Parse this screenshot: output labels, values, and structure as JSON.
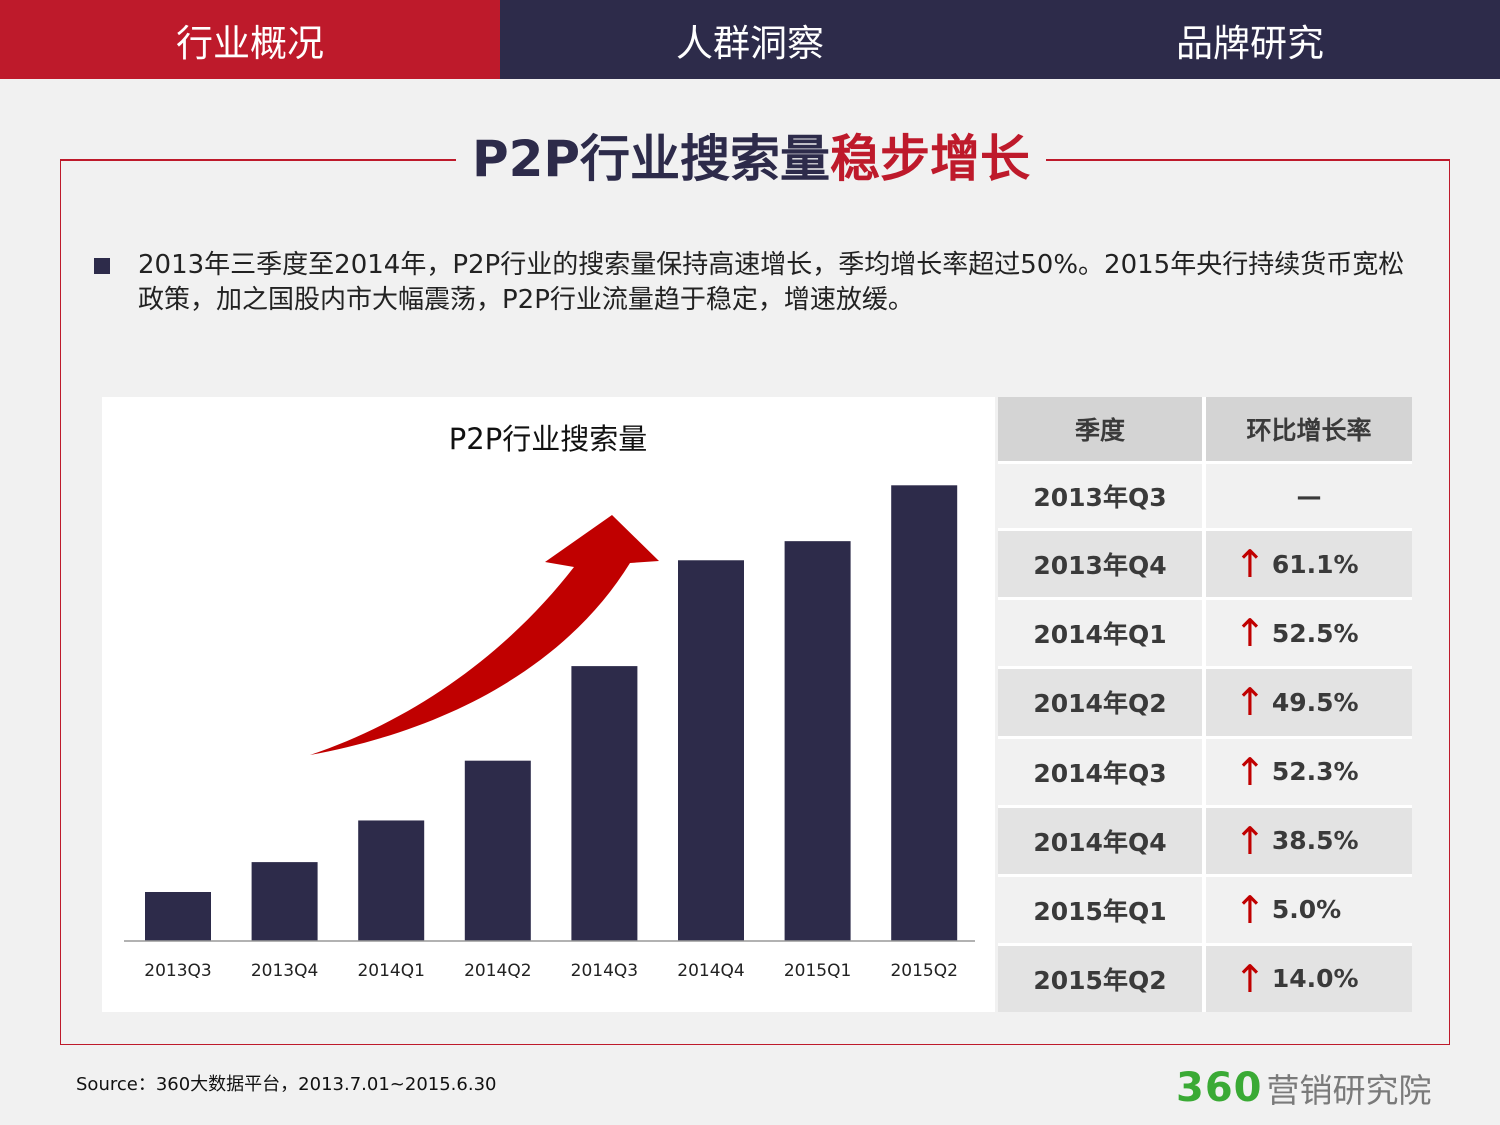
{
  "tabs": [
    {
      "label": "行业概况",
      "active": true
    },
    {
      "label": "人群洞察",
      "active": false
    },
    {
      "label": "品牌研究",
      "active": false
    }
  ],
  "page_title": {
    "main": "P2P行业搜索量",
    "highlight": "稳步增长"
  },
  "bullet": "2013年三季度至2014年，P2P行业的搜索量保持高速增长，季均增长率超过50%。2015年央行持续货币宽松政策，加之国股内市大幅震荡，P2P行业流量趋于稳定，增速放缓。",
  "table": {
    "headers": [
      "季度",
      "环比增长率"
    ],
    "rows": [
      {
        "quarter": "2013年Q3",
        "rate": "—",
        "up": false
      },
      {
        "quarter": "2013年Q4",
        "rate": "61.1%",
        "up": true
      },
      {
        "quarter": "2014年Q1",
        "rate": "52.5%",
        "up": true
      },
      {
        "quarter": "2014年Q2",
        "rate": "49.5%",
        "up": true
      },
      {
        "quarter": "2014年Q3",
        "rate": "52.3%",
        "up": true
      },
      {
        "quarter": "2014年Q4",
        "rate": "38.5%",
        "up": true
      },
      {
        "quarter": "2015年Q1",
        "rate": "5.0%",
        "up": true
      },
      {
        "quarter": "2015年Q2",
        "rate": "14.0%",
        "up": true
      }
    ]
  },
  "source": "Source：360大数据平台，2013.7.01~2015.6.30",
  "logo": {
    "number": "360",
    "text": "营销研究院"
  },
  "colors": {
    "tab_active": "#be1a2b",
    "tab_bg": "#2d2b4a",
    "bar": "#2d2b4a",
    "arrow": "#c00000",
    "logo_green": "#3aaa35"
  },
  "chart_data": {
    "type": "bar",
    "title": "P2P行业搜索量",
    "categories": [
      "2013Q3",
      "2013Q4",
      "2014Q1",
      "2014Q2",
      "2014Q3",
      "2014Q4",
      "2015Q1",
      "2015Q2"
    ],
    "values": [
      10,
      16.1,
      24.6,
      36.8,
      56.1,
      77.7,
      81.6,
      93.0
    ],
    "xlabel": "",
    "ylabel": "",
    "ylim": [
      0,
      100
    ],
    "grid": false,
    "legend": "none",
    "annotation": "red-upward-arrow"
  }
}
